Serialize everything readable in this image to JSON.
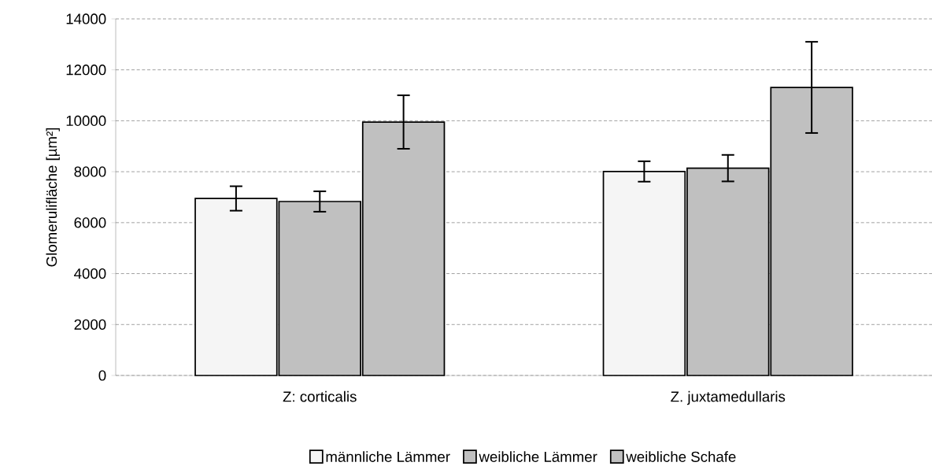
{
  "chart_data": {
    "type": "bar",
    "ylabel": "Glomerulifläche [µm²]",
    "categories": [
      "Z: corticalis",
      "Z. juxtamedullaris"
    ],
    "ylim": [
      0,
      14000
    ],
    "yticks": [
      0,
      2000,
      4000,
      6000,
      8000,
      10000,
      12000,
      14000
    ],
    "grid": "y",
    "legend": "bottom",
    "series": [
      {
        "name": "männliche Lämmer",
        "color": "#f5f5f5",
        "values": [
          6950,
          8010
        ],
        "errors": [
          480,
          400
        ]
      },
      {
        "name": "weibliche Lämmer",
        "color": "#c0c0c0",
        "values": [
          6830,
          8140
        ],
        "errors": [
          400,
          520
        ]
      },
      {
        "name": "weibliche Schafe",
        "color": "#c0c0c0",
        "values": [
          9950,
          11310
        ],
        "errors": [
          1050,
          1790
        ]
      }
    ]
  }
}
